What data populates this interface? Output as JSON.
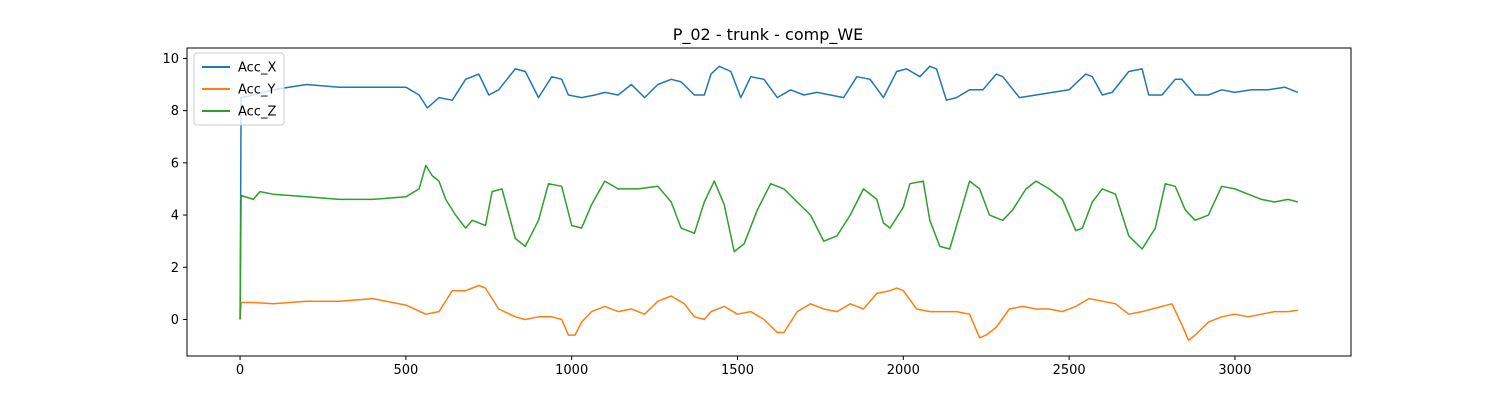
{
  "chart_data": {
    "type": "line",
    "title": "P_02 - trunk - comp_WE",
    "xlabel": "",
    "ylabel": "",
    "xlim": [
      -160,
      3350
    ],
    "ylim": [
      -1.4,
      10.4
    ],
    "xticks": [
      0,
      500,
      1000,
      1500,
      2000,
      2500,
      3000
    ],
    "yticks": [
      0,
      2,
      4,
      6,
      8,
      10
    ],
    "grid": false,
    "legend_position": "top-left",
    "series": [
      {
        "name": "Acc_X",
        "color": "#1f77b4",
        "x": [
          0,
          3,
          40,
          100,
          200,
          300,
          400,
          500,
          540,
          565,
          600,
          640,
          680,
          720,
          750,
          780,
          830,
          860,
          900,
          940,
          970,
          990,
          1030,
          1070,
          1100,
          1140,
          1180,
          1220,
          1260,
          1300,
          1330,
          1370,
          1400,
          1420,
          1445,
          1480,
          1510,
          1540,
          1580,
          1620,
          1660,
          1700,
          1740,
          1780,
          1820,
          1860,
          1900,
          1940,
          1980,
          2010,
          2050,
          2080,
          2100,
          2130,
          2160,
          2200,
          2240,
          2280,
          2300,
          2350,
          2400,
          2450,
          2500,
          2550,
          2570,
          2600,
          2630,
          2680,
          2720,
          2740,
          2780,
          2820,
          2840,
          2880,
          2920,
          2960,
          3000,
          3050,
          3100,
          3150,
          3190
        ],
        "y": [
          0,
          8.5,
          8.6,
          8.8,
          9.0,
          8.9,
          8.9,
          8.9,
          8.6,
          8.1,
          8.5,
          8.4,
          9.2,
          9.4,
          8.6,
          8.8,
          9.6,
          9.5,
          8.5,
          9.3,
          9.2,
          8.6,
          8.5,
          8.6,
          8.7,
          8.6,
          9.0,
          8.5,
          9.0,
          9.2,
          9.1,
          8.6,
          8.6,
          9.4,
          9.7,
          9.5,
          8.5,
          9.3,
          9.2,
          8.5,
          8.8,
          8.6,
          8.7,
          8.6,
          8.5,
          9.3,
          9.2,
          8.5,
          9.5,
          9.6,
          9.3,
          9.7,
          9.6,
          8.4,
          8.5,
          8.8,
          8.8,
          9.4,
          9.3,
          8.5,
          8.6,
          8.7,
          8.8,
          9.4,
          9.3,
          8.6,
          8.7,
          9.5,
          9.6,
          8.6,
          8.6,
          9.2,
          9.2,
          8.6,
          8.6,
          8.8,
          8.7,
          8.8,
          8.8,
          8.9,
          8.7
        ]
      },
      {
        "name": "Acc_Y",
        "color": "#ff7f0e",
        "x": [
          0,
          3,
          40,
          100,
          200,
          300,
          400,
          500,
          560,
          600,
          640,
          680,
          720,
          740,
          780,
          830,
          860,
          900,
          940,
          970,
          990,
          1010,
          1030,
          1060,
          1100,
          1140,
          1180,
          1220,
          1260,
          1300,
          1340,
          1370,
          1400,
          1420,
          1460,
          1500,
          1540,
          1580,
          1620,
          1640,
          1680,
          1720,
          1760,
          1800,
          1840,
          1880,
          1920,
          1960,
          1980,
          2000,
          2040,
          2080,
          2120,
          2160,
          2200,
          2230,
          2250,
          2280,
          2320,
          2360,
          2400,
          2440,
          2480,
          2520,
          2560,
          2600,
          2640,
          2680,
          2720,
          2780,
          2810,
          2840,
          2860,
          2880,
          2920,
          2960,
          3000,
          3040,
          3080,
          3120,
          3160,
          3190
        ],
        "y": [
          0,
          0.65,
          0.65,
          0.6,
          0.7,
          0.7,
          0.8,
          0.55,
          0.2,
          0.3,
          1.1,
          1.1,
          1.3,
          1.2,
          0.4,
          0.1,
          0.0,
          0.1,
          0.1,
          0.0,
          -0.6,
          -0.6,
          -0.1,
          0.3,
          0.5,
          0.3,
          0.4,
          0.2,
          0.7,
          0.9,
          0.6,
          0.1,
          0.0,
          0.3,
          0.5,
          0.2,
          0.3,
          0.0,
          -0.5,
          -0.5,
          0.3,
          0.6,
          0.4,
          0.3,
          0.6,
          0.4,
          1.0,
          1.1,
          1.2,
          1.1,
          0.4,
          0.3,
          0.3,
          0.3,
          0.2,
          -0.7,
          -0.6,
          -0.3,
          0.4,
          0.5,
          0.4,
          0.4,
          0.3,
          0.5,
          0.8,
          0.7,
          0.6,
          0.2,
          0.3,
          0.5,
          0.6,
          -0.2,
          -0.8,
          -0.6,
          -0.1,
          0.1,
          0.2,
          0.1,
          0.2,
          0.3,
          0.3,
          0.35
        ]
      },
      {
        "name": "Acc_Z",
        "color": "#2ca02c",
        "x": [
          0,
          3,
          40,
          60,
          100,
          200,
          300,
          400,
          500,
          540,
          560,
          580,
          600,
          620,
          650,
          680,
          700,
          740,
          760,
          790,
          830,
          860,
          900,
          930,
          970,
          1000,
          1030,
          1060,
          1100,
          1140,
          1200,
          1260,
          1300,
          1330,
          1370,
          1400,
          1430,
          1460,
          1490,
          1520,
          1560,
          1600,
          1640,
          1680,
          1720,
          1760,
          1800,
          1840,
          1880,
          1920,
          1940,
          1960,
          2000,
          2020,
          2060,
          2080,
          2110,
          2140,
          2170,
          2200,
          2230,
          2260,
          2300,
          2330,
          2370,
          2400,
          2440,
          2480,
          2520,
          2540,
          2570,
          2600,
          2640,
          2680,
          2720,
          2760,
          2790,
          2820,
          2850,
          2880,
          2920,
          2960,
          3000,
          3040,
          3080,
          3120,
          3160,
          3190
        ],
        "y": [
          0,
          4.75,
          4.6,
          4.9,
          4.8,
          4.7,
          4.6,
          4.6,
          4.7,
          5.0,
          5.9,
          5.5,
          5.3,
          4.6,
          4.0,
          3.5,
          3.8,
          3.6,
          4.9,
          5.0,
          3.1,
          2.8,
          3.8,
          5.2,
          5.1,
          3.6,
          3.5,
          4.4,
          5.3,
          5.0,
          5.0,
          5.1,
          4.5,
          3.5,
          3.3,
          4.5,
          5.3,
          4.4,
          2.6,
          2.9,
          4.2,
          5.2,
          5.0,
          4.5,
          4.0,
          3.0,
          3.2,
          4.0,
          5.0,
          4.6,
          3.7,
          3.5,
          4.3,
          5.2,
          5.3,
          3.8,
          2.8,
          2.7,
          4.0,
          5.3,
          5.0,
          4.0,
          3.8,
          4.2,
          5.0,
          5.3,
          5.0,
          4.6,
          3.4,
          3.5,
          4.5,
          5.0,
          4.8,
          3.2,
          2.7,
          3.5,
          5.2,
          5.1,
          4.2,
          3.8,
          4.0,
          5.1,
          5.0,
          4.8,
          4.6,
          4.5,
          4.6,
          4.5
        ]
      }
    ]
  }
}
